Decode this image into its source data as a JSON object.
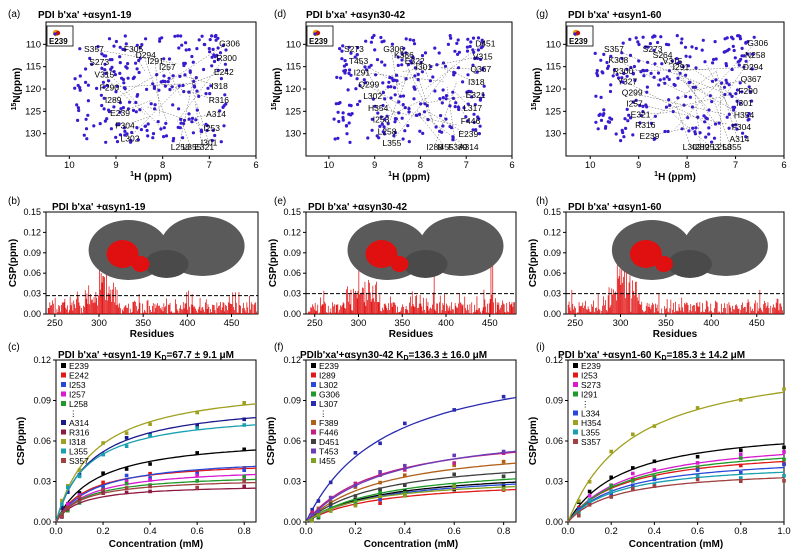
{
  "colors": {
    "nmr_peak": "#3a1ad0",
    "csp_bar": "#e00000",
    "threshold": "#000000",
    "protein_surface": "#5a5a5a",
    "protein_highlight": "#e01010"
  },
  "panels": {
    "a": {
      "letter": "(a)",
      "title": "PDI b'xa' +αsyn1-19",
      "inset_label": "E239",
      "labels": [
        "S357",
        "G306",
        "F305",
        "S273",
        "R300",
        "D294",
        "V315",
        "E242",
        "I291",
        "F290",
        "I318",
        "I257",
        "I289",
        "R316",
        "L258",
        "E239",
        "A314",
        "L355",
        "F304",
        "I253",
        "E321",
        "L302",
        "I301"
      ]
    },
    "d": {
      "letter": "(d)",
      "title": "PDI b'xa' +αsyn30-42",
      "inset_label": "E239",
      "labels": [
        "S273",
        "D451",
        "G306",
        "T453",
        "V315",
        "K386",
        "I291",
        "Q367",
        "E322",
        "Q299",
        "I318",
        "I301",
        "L302",
        "E321",
        "I289",
        "H354",
        "L317",
        "I455",
        "I253",
        "F446",
        "F389",
        "L258",
        "E239",
        "A314",
        "L355"
      ]
    },
    "g": {
      "letter": "(g)",
      "title": "PDI b'xa' +αsyn1-60",
      "inset_label": "E239",
      "labels": [
        "S357",
        "G306",
        "S273",
        "K308",
        "N258",
        "S264",
        "R300",
        "D294",
        "V315",
        "Y327",
        "Q367",
        "I291",
        "Q299",
        "F290",
        "L302",
        "I257",
        "I301",
        "I289",
        "E321",
        "H354",
        "I253",
        "R316",
        "F304",
        "L258",
        "E239",
        "A314",
        "L355"
      ]
    },
    "b": {
      "letter": "(b)",
      "title": "PDI b'xa' +αsyn1-19"
    },
    "e": {
      "letter": "(e)",
      "title": "PDI b'xa' +αsyn30-42"
    },
    "h": {
      "letter": "(h)",
      "title": "PDI b'xa' +αsyn1-60"
    },
    "c": {
      "letter": "(c)",
      "title": "PDI b'xa' +αsyn1-19 K",
      "kd_sub": "D",
      "kd_value": "=67.7 ± 9.1 μM"
    },
    "f": {
      "letter": "(f)",
      "title": "PDIb'xa'+αsyn30-42 K",
      "kd_sub": "D",
      "kd_value": "=136.3 ± 16.0 μM"
    },
    "i": {
      "letter": "(i)",
      "title": "PDI b'xa' +αsyn1-60 K",
      "kd_sub": "D",
      "kd_value": "=185.3 ± 14.2 μM"
    }
  },
  "chart_data": [
    {
      "panel": "a",
      "type": "scatter",
      "xlabel": "1H (ppm)",
      "ylabel": "15N(ppm)",
      "x_range": [
        10.5,
        6.0
      ],
      "y_range": [
        105,
        135
      ],
      "x_ticks": [
        10,
        9,
        8,
        7,
        6
      ],
      "y_ticks": [
        110,
        115,
        120,
        125,
        130
      ]
    },
    {
      "panel": "d",
      "type": "scatter",
      "xlabel": "1H (ppm)",
      "ylabel": "15N(ppm)",
      "x_range": [
        10.5,
        6.0
      ],
      "y_range": [
        105,
        135
      ],
      "x_ticks": [
        10,
        9,
        8,
        7,
        6
      ],
      "y_ticks": [
        110,
        115,
        120,
        125,
        130
      ]
    },
    {
      "panel": "g",
      "type": "scatter",
      "xlabel": "1H (ppm)",
      "ylabel": "15N(ppm)",
      "x_range": [
        10.5,
        6.0
      ],
      "y_range": [
        105,
        135
      ],
      "x_ticks": [
        10,
        9,
        8,
        7,
        6
      ],
      "y_ticks": [
        110,
        115,
        120,
        125,
        130
      ]
    },
    {
      "panel": "b",
      "type": "bar",
      "xlabel": "Residues",
      "ylabel": "CSP(ppm)",
      "x_range": [
        240,
        480
      ],
      "y_range": [
        0,
        0.15
      ],
      "threshold": 0.027,
      "x_ticks": [
        250,
        300,
        350,
        400,
        450
      ],
      "y_ticks": [
        "0.00",
        "0.03",
        "0.06",
        "0.09",
        "0.12",
        "0.15"
      ]
    },
    {
      "panel": "e",
      "type": "bar",
      "xlabel": "Residues",
      "ylabel": "CSP(ppm)",
      "x_range": [
        240,
        480
      ],
      "y_range": [
        0,
        0.15
      ],
      "threshold": 0.03,
      "x_ticks": [
        250,
        300,
        350,
        400,
        450
      ],
      "y_ticks": [
        "0.00",
        "0.03",
        "0.06",
        "0.09",
        "0.12",
        "0.15"
      ]
    },
    {
      "panel": "h",
      "type": "bar",
      "xlabel": "Residues",
      "ylabel": "CSP(ppm)",
      "x_range": [
        240,
        480
      ],
      "y_range": [
        0,
        0.15
      ],
      "threshold": 0.03,
      "x_ticks": [
        250,
        300,
        350,
        400,
        450
      ],
      "y_ticks": [
        "0.00",
        "0.03",
        "0.06",
        "0.09",
        "0.12",
        "0.15"
      ]
    },
    {
      "panel": "c",
      "type": "line",
      "xlabel": "Concentration (mM)",
      "ylabel": "CSP(ppm)",
      "x_range": [
        0,
        0.85
      ],
      "y_range": [
        0,
        0.12
      ],
      "x_ticks": [
        "0.0",
        "0.2",
        "0.4",
        "0.6",
        "0.8"
      ],
      "y_ticks": [
        "0.00",
        "0.03",
        "0.06",
        "0.09",
        "0.12"
      ],
      "x": [
        0.025,
        0.05,
        0.1,
        0.2,
        0.3,
        0.4,
        0.6,
        0.8
      ],
      "legend": [
        "E239",
        "E242",
        "I253",
        "I257",
        "L258",
        "⋮",
        "A314",
        "R316",
        "I318",
        "L355",
        "S357"
      ],
      "series": [
        {
          "name": "E239",
          "color": "#000000",
          "ymax": 0.064,
          "kd": 0.17
        },
        {
          "name": "E242",
          "color": "#e01818",
          "ymax": 0.046,
          "kd": 0.13
        },
        {
          "name": "I253",
          "color": "#2748d8",
          "ymax": 0.049,
          "kd": 0.16
        },
        {
          "name": "I257",
          "color": "#d81ad0",
          "ymax": 0.041,
          "kd": 0.14
        },
        {
          "name": "L258",
          "color": "#1f9a2a",
          "ymax": 0.036,
          "kd": 0.12
        },
        {
          "name": "A314",
          "color": "#1a1a8c",
          "ymax": 0.091,
          "kd": 0.15
        },
        {
          "name": "R316",
          "color": "#8c1a40",
          "ymax": 0.028,
          "kd": 0.1
        },
        {
          "name": "I318",
          "color": "#a0a020",
          "ymax": 0.104,
          "kd": 0.16
        },
        {
          "name": "L355",
          "color": "#18a0b0",
          "ymax": 0.083,
          "kd": 0.13
        },
        {
          "name": "S357",
          "color": "#a04040",
          "ymax": 0.033,
          "kd": 0.11
        }
      ]
    },
    {
      "panel": "f",
      "type": "line",
      "xlabel": "Concentration (mM)",
      "ylabel": "CSP(ppm)",
      "x_range": [
        0,
        0.85
      ],
      "y_range": [
        0,
        0.12
      ],
      "x_ticks": [
        "0.0",
        "0.2",
        "0.4",
        "0.6",
        "0.8"
      ],
      "y_ticks": [
        "0.00",
        "0.03",
        "0.06",
        "0.09",
        "0.12"
      ],
      "x": [
        0.025,
        0.05,
        0.1,
        0.2,
        0.3,
        0.4,
        0.6,
        0.8
      ],
      "legend": [
        "E239",
        "I289",
        "L302",
        "G306",
        "L307",
        "⋮",
        "F389",
        "F446",
        "D451",
        "T453",
        "I455"
      ],
      "series": [
        {
          "name": "E239",
          "color": "#000000",
          "ymax": 0.04,
          "kd": 0.3
        },
        {
          "name": "I289",
          "color": "#e01818",
          "ymax": 0.032,
          "kd": 0.28
        },
        {
          "name": "L302",
          "color": "#2748d8",
          "ymax": 0.038,
          "kd": 0.3
        },
        {
          "name": "G306",
          "color": "#1f9a2a",
          "ymax": 0.044,
          "kd": 0.32
        },
        {
          "name": "L307",
          "color": "#2a2ab0",
          "ymax": 0.128,
          "kd": 0.33
        },
        {
          "name": "F389",
          "color": "#b06018",
          "ymax": 0.06,
          "kd": 0.32
        },
        {
          "name": "F446",
          "color": "#c02080",
          "ymax": 0.07,
          "kd": 0.3
        },
        {
          "name": "D451",
          "color": "#404040",
          "ymax": 0.05,
          "kd": 0.3
        },
        {
          "name": "T453",
          "color": "#6a3ab8",
          "ymax": 0.074,
          "kd": 0.35
        },
        {
          "name": "I455",
          "color": "#80a020",
          "ymax": 0.034,
          "kd": 0.25
        }
      ]
    },
    {
      "panel": "i",
      "type": "line",
      "xlabel": "Concentration (mM)",
      "ylabel": "CSP(ppm)",
      "x_range": [
        0,
        1.0
      ],
      "y_range": [
        0,
        0.12
      ],
      "x_ticks": [
        "0.0",
        "0.2",
        "0.4",
        "0.6",
        "0.8",
        "1.0"
      ],
      "y_ticks": [
        "0.00",
        "0.03",
        "0.06",
        "0.09",
        "0.12"
      ],
      "x": [
        0.05,
        0.1,
        0.2,
        0.3,
        0.4,
        0.6,
        0.8,
        1.0
      ],
      "legend": [
        "E239",
        "I253",
        "S273",
        "I291",
        "⋮",
        "L334",
        "H354",
        "L355",
        "S357"
      ],
      "series": [
        {
          "name": "E239",
          "color": "#000000",
          "ymax": 0.073,
          "kd": 0.26
        },
        {
          "name": "I253",
          "color": "#e01818",
          "ymax": 0.056,
          "kd": 0.25
        },
        {
          "name": "S273",
          "color": "#d81ad0",
          "ymax": 0.064,
          "kd": 0.28
        },
        {
          "name": "I291",
          "color": "#1f9a2a",
          "ymax": 0.06,
          "kd": 0.27
        },
        {
          "name": "L334",
          "color": "#2748d8",
          "ymax": 0.05,
          "kd": 0.24
        },
        {
          "name": "H354",
          "color": "#a0a020",
          "ymax": 0.125,
          "kd": 0.3
        },
        {
          "name": "L355",
          "color": "#18a0b0",
          "ymax": 0.045,
          "kd": 0.22
        },
        {
          "name": "S357",
          "color": "#a04040",
          "ymax": 0.04,
          "kd": 0.22
        }
      ]
    }
  ]
}
